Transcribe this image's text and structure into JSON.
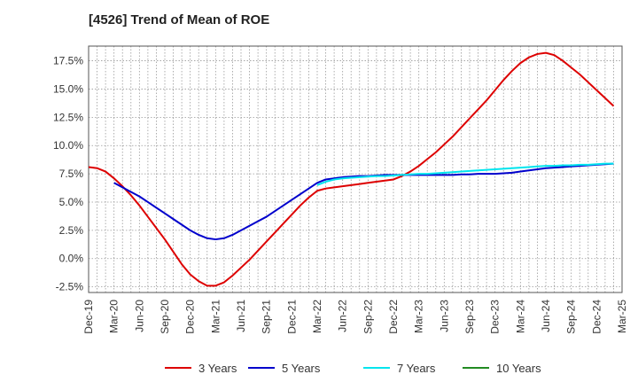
{
  "chart_data": {
    "type": "line",
    "title": "[4526]  Trend of Mean of ROE",
    "xlabel": "",
    "ylabel": "",
    "ylim": [
      -3.0,
      18.8
    ],
    "grid": true,
    "legend_position": "bottom",
    "x_ticks": [
      "Dec-19",
      "Mar-20",
      "Jun-20",
      "Sep-20",
      "Dec-20",
      "Mar-21",
      "Jun-21",
      "Sep-21",
      "Dec-21",
      "Mar-22",
      "Jun-22",
      "Sep-22",
      "Dec-22",
      "Mar-23",
      "Jun-23",
      "Sep-23",
      "Dec-23",
      "Mar-24",
      "Jun-24",
      "Sep-24",
      "Dec-24",
      "Mar-25"
    ],
    "y_ticks": [
      "-2.5%",
      "0.0%",
      "2.5%",
      "5.0%",
      "7.5%",
      "10.0%",
      "12.5%",
      "15.0%",
      "17.5%"
    ],
    "y_tick_values": [
      -2.5,
      0.0,
      2.5,
      5.0,
      7.5,
      10.0,
      12.5,
      15.0,
      17.5
    ],
    "series": [
      {
        "name": "3 Years",
        "color": "#dd0000",
        "points": [
          [
            "Dec-19",
            8.1
          ],
          [
            "Jan-20",
            8.0
          ],
          [
            "Feb-20",
            7.7
          ],
          [
            "Mar-20",
            7.1
          ],
          [
            "Apr-20",
            6.4
          ],
          [
            "May-20",
            5.6
          ],
          [
            "Jun-20",
            4.7
          ],
          [
            "Jul-20",
            3.7
          ],
          [
            "Aug-20",
            2.7
          ],
          [
            "Sep-20",
            1.7
          ],
          [
            "Oct-20",
            0.6
          ],
          [
            "Nov-20",
            -0.5
          ],
          [
            "Dec-20",
            -1.4
          ],
          [
            "Jan-21",
            -2.0
          ],
          [
            "Feb-21",
            -2.4
          ],
          [
            "Mar-21",
            -2.4
          ],
          [
            "Apr-21",
            -2.1
          ],
          [
            "May-21",
            -1.5
          ],
          [
            "Jun-21",
            -0.8
          ],
          [
            "Jul-21",
            -0.1
          ],
          [
            "Aug-21",
            0.7
          ],
          [
            "Sep-21",
            1.5
          ],
          [
            "Oct-21",
            2.3
          ],
          [
            "Nov-21",
            3.1
          ],
          [
            "Dec-21",
            3.9
          ],
          [
            "Jan-22",
            4.7
          ],
          [
            "Feb-22",
            5.4
          ],
          [
            "Mar-22",
            6.0
          ],
          [
            "Apr-22",
            6.2
          ],
          [
            "May-22",
            6.3
          ],
          [
            "Jun-22",
            6.4
          ],
          [
            "Jul-22",
            6.5
          ],
          [
            "Aug-22",
            6.6
          ],
          [
            "Sep-22",
            6.7
          ],
          [
            "Oct-22",
            6.8
          ],
          [
            "Nov-22",
            6.9
          ],
          [
            "Dec-22",
            7.0
          ],
          [
            "Jan-23",
            7.3
          ],
          [
            "Feb-23",
            7.7
          ],
          [
            "Mar-23",
            8.2
          ],
          [
            "Apr-23",
            8.8
          ],
          [
            "May-23",
            9.4
          ],
          [
            "Jun-23",
            10.1
          ],
          [
            "Jul-23",
            10.8
          ],
          [
            "Aug-23",
            11.6
          ],
          [
            "Sep-23",
            12.4
          ],
          [
            "Oct-23",
            13.2
          ],
          [
            "Nov-23",
            14.0
          ],
          [
            "Dec-23",
            14.9
          ],
          [
            "Jan-24",
            15.8
          ],
          [
            "Feb-24",
            16.6
          ],
          [
            "Mar-24",
            17.3
          ],
          [
            "Apr-24",
            17.8
          ],
          [
            "May-24",
            18.1
          ],
          [
            "Jun-24",
            18.2
          ],
          [
            "Jul-24",
            18.0
          ],
          [
            "Aug-24",
            17.5
          ],
          [
            "Sep-24",
            16.9
          ],
          [
            "Oct-24",
            16.3
          ],
          [
            "Nov-24",
            15.6
          ],
          [
            "Dec-24",
            14.9
          ],
          [
            "Jan-25",
            14.2
          ],
          [
            "Feb-25",
            13.5
          ]
        ]
      },
      {
        "name": "5 Years",
        "color": "#0000cc",
        "points": [
          [
            "Mar-20",
            6.7
          ],
          [
            "Apr-20",
            6.3
          ],
          [
            "May-20",
            5.9
          ],
          [
            "Jun-20",
            5.5
          ],
          [
            "Jul-20",
            5.0
          ],
          [
            "Aug-20",
            4.5
          ],
          [
            "Sep-20",
            4.0
          ],
          [
            "Oct-20",
            3.5
          ],
          [
            "Nov-20",
            3.0
          ],
          [
            "Dec-20",
            2.5
          ],
          [
            "Jan-21",
            2.1
          ],
          [
            "Feb-21",
            1.8
          ],
          [
            "Mar-21",
            1.7
          ],
          [
            "Apr-21",
            1.8
          ],
          [
            "May-21",
            2.1
          ],
          [
            "Jun-21",
            2.5
          ],
          [
            "Jul-21",
            2.9
          ],
          [
            "Aug-21",
            3.3
          ],
          [
            "Sep-21",
            3.7
          ],
          [
            "Oct-21",
            4.2
          ],
          [
            "Nov-21",
            4.7
          ],
          [
            "Dec-21",
            5.2
          ],
          [
            "Jan-22",
            5.7
          ],
          [
            "Feb-22",
            6.2
          ],
          [
            "Mar-22",
            6.7
          ],
          [
            "Apr-22",
            7.0
          ],
          [
            "May-22",
            7.1
          ],
          [
            "Jun-22",
            7.2
          ],
          [
            "Jul-22",
            7.25
          ],
          [
            "Aug-22",
            7.3
          ],
          [
            "Sep-22",
            7.3
          ],
          [
            "Oct-22",
            7.35
          ],
          [
            "Nov-22",
            7.4
          ],
          [
            "Dec-22",
            7.4
          ],
          [
            "Jan-23",
            7.4
          ],
          [
            "Feb-23",
            7.4
          ],
          [
            "Mar-23",
            7.4
          ],
          [
            "Apr-23",
            7.4
          ],
          [
            "May-23",
            7.4
          ],
          [
            "Jun-23",
            7.4
          ],
          [
            "Jul-23",
            7.4
          ],
          [
            "Aug-23",
            7.45
          ],
          [
            "Sep-23",
            7.45
          ],
          [
            "Oct-23",
            7.5
          ],
          [
            "Nov-23",
            7.5
          ],
          [
            "Dec-23",
            7.5
          ],
          [
            "Jan-24",
            7.55
          ],
          [
            "Feb-24",
            7.6
          ],
          [
            "Mar-24",
            7.7
          ],
          [
            "Apr-24",
            7.8
          ],
          [
            "May-24",
            7.9
          ],
          [
            "Jun-24",
            8.0
          ],
          [
            "Jul-24",
            8.05
          ],
          [
            "Aug-24",
            8.1
          ],
          [
            "Sep-24",
            8.15
          ],
          [
            "Oct-24",
            8.2
          ],
          [
            "Nov-24",
            8.25
          ],
          [
            "Dec-24",
            8.3
          ],
          [
            "Jan-25",
            8.35
          ],
          [
            "Feb-25",
            8.4
          ]
        ]
      },
      {
        "name": "7 Years",
        "color": "#00e5ee",
        "points": [
          [
            "Mar-22",
            6.5
          ],
          [
            "Apr-22",
            6.8
          ],
          [
            "May-22",
            7.0
          ],
          [
            "Jun-22",
            7.1
          ],
          [
            "Jul-22",
            7.15
          ],
          [
            "Aug-22",
            7.2
          ],
          [
            "Sep-22",
            7.25
          ],
          [
            "Oct-22",
            7.3
          ],
          [
            "Nov-22",
            7.3
          ],
          [
            "Dec-22",
            7.35
          ],
          [
            "Jan-23",
            7.4
          ],
          [
            "Feb-23",
            7.45
          ],
          [
            "Mar-23",
            7.5
          ],
          [
            "Apr-23",
            7.5
          ],
          [
            "May-23",
            7.55
          ],
          [
            "Jun-23",
            7.6
          ],
          [
            "Jul-23",
            7.65
          ],
          [
            "Aug-23",
            7.7
          ],
          [
            "Sep-23",
            7.75
          ],
          [
            "Oct-23",
            7.8
          ],
          [
            "Nov-23",
            7.85
          ],
          [
            "Dec-23",
            7.9
          ],
          [
            "Jan-24",
            7.95
          ],
          [
            "Feb-24",
            8.0
          ],
          [
            "Mar-24",
            8.05
          ],
          [
            "Apr-24",
            8.1
          ],
          [
            "May-24",
            8.15
          ],
          [
            "Jun-24",
            8.2
          ],
          [
            "Jul-24",
            8.2
          ],
          [
            "Aug-24",
            8.25
          ],
          [
            "Sep-24",
            8.25
          ],
          [
            "Oct-24",
            8.3
          ],
          [
            "Nov-24",
            8.3
          ],
          [
            "Dec-24",
            8.35
          ],
          [
            "Jan-25",
            8.4
          ],
          [
            "Feb-25",
            8.4
          ]
        ]
      },
      {
        "name": "10 Years",
        "color": "#228b22",
        "points": []
      }
    ]
  }
}
